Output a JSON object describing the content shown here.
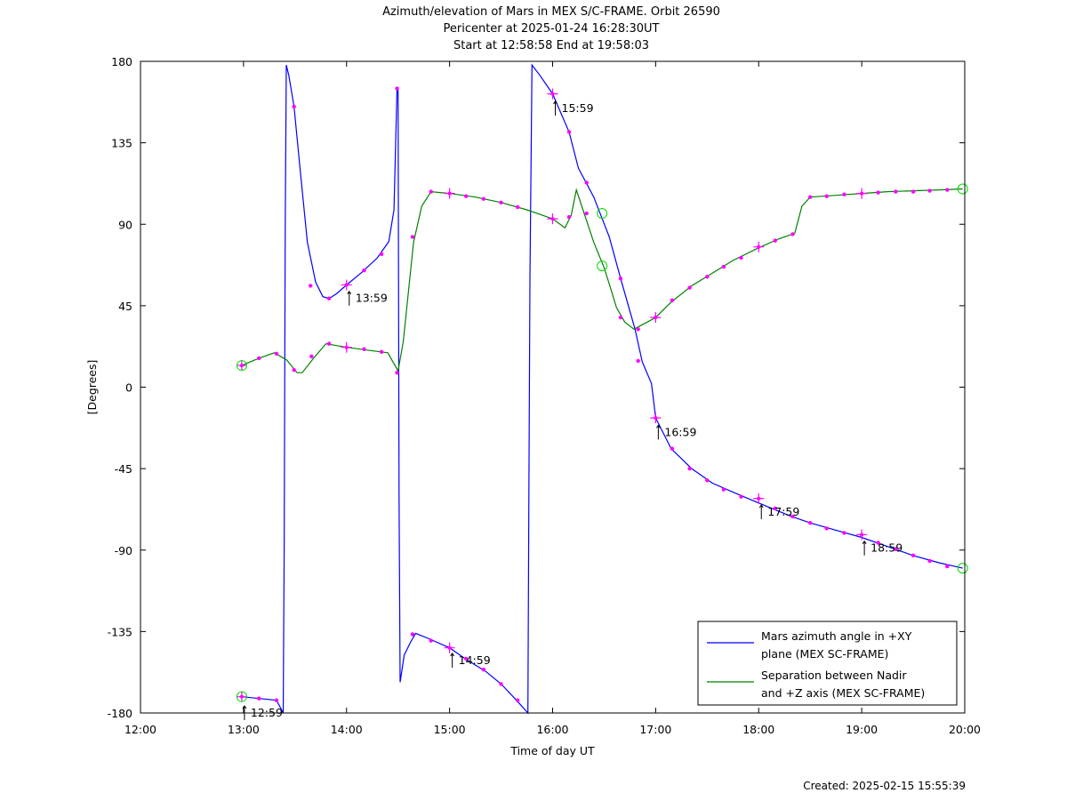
{
  "created": "Created: 2025-02-15 15:55:39",
  "chart_data": {
    "type": "line",
    "title": [
      "Azimuth/elevation of Mars in MEX S/C-FRAME.  Orbit 26590",
      "Pericenter at 2025-01-24 16:28:30UT",
      "Start at 12:58:58 End at 19:58:03"
    ],
    "xlabel": "Time of day UT",
    "ylabel": "[Degrees]",
    "x_unit": "hours of day (UT)",
    "xlim": [
      12,
      20
    ],
    "ylim": [
      -180,
      180
    ],
    "x_ticks": [
      12,
      13,
      14,
      15,
      16,
      17,
      18,
      19,
      20
    ],
    "x_tick_labels": [
      "12:00",
      "13:00",
      "14:00",
      "15:00",
      "16:00",
      "17:00",
      "18:00",
      "19:00",
      "20:00"
    ],
    "y_ticks": [
      180,
      135,
      90,
      45,
      0,
      -45,
      -90,
      -135,
      -180
    ],
    "y_tick_labels": [
      "180",
      "135",
      "90",
      "45",
      "0",
      "-45",
      "-90",
      "-135",
      "-180"
    ],
    "grid": false,
    "legend_position": "bottom-right",
    "series": [
      {
        "name": "Mars azimuth angle in +XY plane (MEX SC-FRAME)",
        "legend_lines": [
          "Mars azimuth angle in +XY",
          "plane (MEX SC-FRAME)"
        ],
        "color": "#0000ff",
        "points": [
          [
            12.983,
            -171
          ],
          [
            13.15,
            -172
          ],
          [
            13.32,
            -173
          ],
          [
            13.385,
            -180
          ],
          [
            13.395,
            -90
          ],
          [
            13.405,
            90
          ],
          [
            13.415,
            178
          ],
          [
            13.44,
            172
          ],
          [
            13.49,
            155
          ],
          [
            13.55,
            120
          ],
          [
            13.62,
            80
          ],
          [
            13.7,
            58
          ],
          [
            13.77,
            50
          ],
          [
            13.83,
            49
          ],
          [
            13.9,
            51.5
          ],
          [
            14.0,
            56.5
          ],
          [
            14.15,
            63.5
          ],
          [
            14.3,
            71.5
          ],
          [
            14.41,
            80.5
          ],
          [
            14.46,
            98
          ],
          [
            14.49,
            165
          ],
          [
            14.5,
            165
          ],
          [
            14.51,
            -60
          ],
          [
            14.52,
            -163
          ],
          [
            14.56,
            -148
          ],
          [
            14.62,
            -141
          ],
          [
            14.67,
            -136
          ],
          [
            14.8,
            -139
          ],
          [
            15.0,
            -144
          ],
          [
            15.15,
            -150
          ],
          [
            15.35,
            -157
          ],
          [
            15.5,
            -164
          ],
          [
            15.65,
            -173
          ],
          [
            15.76,
            -180
          ],
          [
            15.77,
            -60
          ],
          [
            15.78,
            60
          ],
          [
            15.8,
            178
          ],
          [
            15.88,
            172
          ],
          [
            16.0,
            162
          ],
          [
            16.16,
            141
          ],
          [
            16.25,
            121
          ],
          [
            16.4,
            105
          ],
          [
            16.55,
            83
          ],
          [
            16.66,
            60
          ],
          [
            16.8,
            32
          ],
          [
            16.87,
            14
          ],
          [
            16.96,
            2
          ],
          [
            17.0,
            -17
          ],
          [
            17.15,
            -34
          ],
          [
            17.35,
            -45
          ],
          [
            17.55,
            -53
          ],
          [
            17.75,
            -58
          ],
          [
            18.0,
            -64
          ],
          [
            18.3,
            -71
          ],
          [
            18.5,
            -75
          ],
          [
            18.75,
            -79
          ],
          [
            19.0,
            -83
          ],
          [
            19.25,
            -88
          ],
          [
            19.5,
            -93
          ],
          [
            19.75,
            -97
          ],
          [
            19.98,
            -100
          ]
        ]
      },
      {
        "name": "Separation between Nadir and +Z axis (MEX SC-FRAME)",
        "legend_lines": [
          "Separation between Nadir",
          "and +Z axis (MEX SC-FRAME)"
        ],
        "color": "#008000",
        "points": [
          [
            12.983,
            12
          ],
          [
            13.15,
            16
          ],
          [
            13.3,
            19
          ],
          [
            13.42,
            15
          ],
          [
            13.52,
            8
          ],
          [
            13.57,
            8
          ],
          [
            13.68,
            16
          ],
          [
            13.8,
            24
          ],
          [
            14.0,
            22
          ],
          [
            14.2,
            20.5
          ],
          [
            14.4,
            19
          ],
          [
            14.5,
            9
          ],
          [
            14.55,
            25
          ],
          [
            14.65,
            80
          ],
          [
            14.73,
            100
          ],
          [
            14.82,
            108
          ],
          [
            15.0,
            107
          ],
          [
            15.25,
            105
          ],
          [
            15.5,
            102
          ],
          [
            15.75,
            98
          ],
          [
            16.0,
            93
          ],
          [
            16.12,
            88
          ],
          [
            16.18,
            95
          ],
          [
            16.23,
            109
          ],
          [
            16.3,
            97
          ],
          [
            16.4,
            80
          ],
          [
            16.5,
            66
          ],
          [
            16.55,
            57
          ],
          [
            16.62,
            44
          ],
          [
            16.7,
            36
          ],
          [
            16.79,
            32
          ],
          [
            16.92,
            36
          ],
          [
            17.0,
            38.5
          ],
          [
            17.15,
            47
          ],
          [
            17.35,
            56
          ],
          [
            17.55,
            63
          ],
          [
            17.75,
            70
          ],
          [
            18.0,
            77
          ],
          [
            18.2,
            82
          ],
          [
            18.35,
            85
          ],
          [
            18.42,
            100
          ],
          [
            18.5,
            105
          ],
          [
            18.75,
            106
          ],
          [
            19.0,
            107
          ],
          [
            19.25,
            108
          ],
          [
            19.5,
            108.5
          ],
          [
            19.75,
            109
          ],
          [
            19.98,
            109.5
          ]
        ]
      }
    ],
    "marker_dots": [
      [
        13.15,
        -172
      ],
      [
        13.32,
        -173
      ],
      [
        13.49,
        155
      ],
      [
        13.65,
        56
      ],
      [
        13.83,
        49
      ],
      [
        14.17,
        64.5
      ],
      [
        14.34,
        73.5
      ],
      [
        14.49,
        165
      ],
      [
        14.64,
        -136.5
      ],
      [
        14.82,
        -140
      ],
      [
        15.16,
        -150
      ],
      [
        15.33,
        -156
      ],
      [
        15.5,
        -164
      ],
      [
        15.66,
        -173
      ],
      [
        16.16,
        141
      ],
      [
        16.33,
        113
      ],
      [
        16.66,
        60
      ],
      [
        16.83,
        14.5
      ],
      [
        17.16,
        -34
      ],
      [
        17.33,
        -45
      ],
      [
        17.5,
        -51.5
      ],
      [
        17.66,
        -56.5
      ],
      [
        17.83,
        -60.5
      ],
      [
        18.16,
        -67
      ],
      [
        18.33,
        -71.5
      ],
      [
        18.5,
        -75
      ],
      [
        18.66,
        -78
      ],
      [
        18.83,
        -80.5
      ],
      [
        19.16,
        -86
      ],
      [
        19.33,
        -89.5
      ],
      [
        19.5,
        -93
      ],
      [
        19.66,
        -96
      ],
      [
        19.83,
        -99
      ],
      [
        13.15,
        16
      ],
      [
        13.32,
        18.5
      ],
      [
        13.49,
        9.5
      ],
      [
        13.66,
        17
      ],
      [
        13.83,
        24
      ],
      [
        14.17,
        21
      ],
      [
        14.34,
        19.5
      ],
      [
        14.49,
        8
      ],
      [
        14.64,
        83
      ],
      [
        14.82,
        108
      ],
      [
        15.16,
        105.5
      ],
      [
        15.33,
        104
      ],
      [
        15.5,
        102
      ],
      [
        15.66,
        99.5
      ],
      [
        16.16,
        94
      ],
      [
        16.33,
        96
      ],
      [
        16.66,
        38.5
      ],
      [
        16.83,
        32
      ],
      [
        17.16,
        48
      ],
      [
        17.33,
        55
      ],
      [
        17.5,
        61
      ],
      [
        17.66,
        66.5
      ],
      [
        17.83,
        71.5
      ],
      [
        18.16,
        81
      ],
      [
        18.33,
        84.5
      ],
      [
        18.5,
        105
      ],
      [
        18.66,
        105.5
      ],
      [
        18.83,
        106.5
      ],
      [
        19.16,
        107.5
      ],
      [
        19.33,
        108
      ],
      [
        19.5,
        108
      ],
      [
        19.66,
        108.5
      ],
      [
        19.83,
        109
      ]
    ],
    "hour_crosses": [
      [
        12.983,
        -171
      ],
      [
        14.0,
        56.5
      ],
      [
        15.0,
        -144
      ],
      [
        16.0,
        162
      ],
      [
        17.0,
        -17
      ],
      [
        18.0,
        -61.5
      ],
      [
        19.0,
        -81.5
      ],
      [
        12.983,
        12
      ],
      [
        14.0,
        22
      ],
      [
        15.0,
        107
      ],
      [
        16.0,
        93
      ],
      [
        17.0,
        38.5
      ],
      [
        18.0,
        77.5
      ],
      [
        19.0,
        107
      ]
    ],
    "green_circles": [
      [
        12.983,
        -171
      ],
      [
        12.983,
        12
      ],
      [
        16.48,
        96
      ],
      [
        16.48,
        67
      ],
      [
        19.98,
        -100
      ],
      [
        19.98,
        109.5
      ]
    ],
    "time_annotations": [
      {
        "label": "12:59",
        "x": 12.983,
        "y": -180
      },
      {
        "label": "13:59",
        "x": 14.0,
        "y": 49
      },
      {
        "label": "14:59",
        "x": 15.0,
        "y": -151
      },
      {
        "label": "15:59",
        "x": 16.0,
        "y": 154
      },
      {
        "label": "16:59",
        "x": 17.0,
        "y": -25
      },
      {
        "label": "17:59",
        "x": 18.0,
        "y": -69
      },
      {
        "label": "18:59",
        "x": 19.0,
        "y": -89
      }
    ]
  }
}
